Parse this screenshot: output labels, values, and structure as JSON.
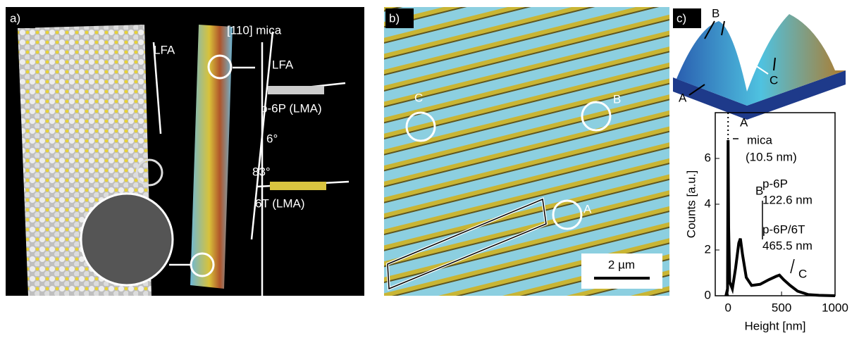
{
  "panels": {
    "a": {
      "label": "a)",
      "lfa_left": "LFA",
      "mica_axis": "[110] mica",
      "lfa_right": "LFA",
      "p6p": "p-6P (LMA)",
      "angle_small": "6°",
      "angle_large": "83°",
      "t6": "6T (LMA)"
    },
    "b": {
      "label": "b)",
      "circle_c": "C",
      "circle_b": "B",
      "circle_a": "A",
      "scale": "2 µm"
    },
    "c": {
      "label": "c)",
      "peak_b": "B",
      "peak_a": "A",
      "peak_c": "C"
    }
  },
  "chart_data": {
    "type": "line",
    "x_label": "Height [nm]",
    "y_label": "Counts [a.u.]",
    "annotations": {
      "a": "A",
      "mica": "mica",
      "mica_h": "(10.5 nm)",
      "b": "B",
      "p6p": "p-6P",
      "p6p_h": "122.6 nm",
      "mixed": "p-6P/6T",
      "mixed_h": "465.5 nm",
      "c": "C"
    },
    "x": [
      -20,
      -5,
      0,
      5,
      15,
      40,
      70,
      100,
      115,
      135,
      170,
      220,
      300,
      380,
      450,
      480,
      520,
      580,
      650,
      750,
      850,
      1000
    ],
    "values": [
      0,
      0.3,
      6.8,
      3,
      0.6,
      0.3,
      1.2,
      2.3,
      2.5,
      1.8,
      0.8,
      0.45,
      0.5,
      0.7,
      0.85,
      0.9,
      0.7,
      0.45,
      0.2,
      0.05,
      0.02,
      0
    ],
    "color": "#000000",
    "xlim": [
      -120,
      1000
    ],
    "ylim": [
      0,
      8
    ],
    "xticks": [
      0,
      500,
      1000
    ],
    "yticks": [
      0,
      2,
      4,
      6
    ]
  }
}
